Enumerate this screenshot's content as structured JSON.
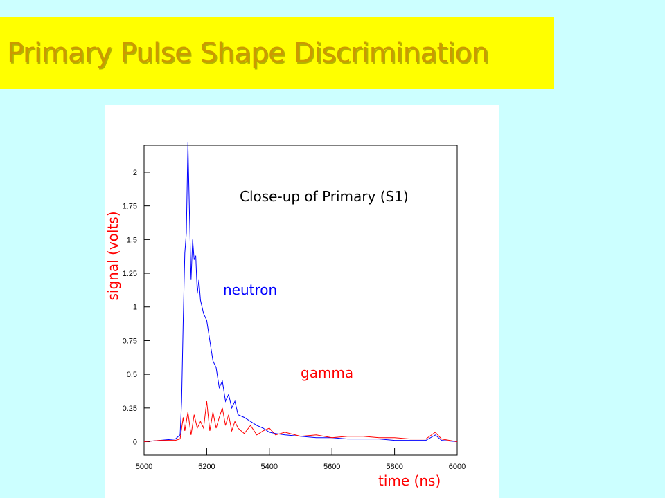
{
  "slide": {
    "title": "Primary Pulse Shape Discrimination",
    "background": "#ccffff",
    "banner_color": "#ffff00",
    "title_color": "#cc9900"
  },
  "chart_data": {
    "type": "line",
    "title": "Close-up of Primary (S1)",
    "xlabel": "time (ns)",
    "ylabel": "signal (volts)",
    "xlim": [
      5000,
      6000
    ],
    "ylim": [
      -0.1,
      2.2
    ],
    "x_ticks": [
      "5000",
      "5200",
      "5400",
      "5600",
      "5800",
      "6000"
    ],
    "y_ticks": [
      "0",
      "0.25",
      "0.5",
      "0.75",
      "1",
      "1.25",
      "1.5",
      "1.75",
      "2"
    ],
    "annotations": {
      "neutron": "neutron",
      "gamma": "gamma"
    },
    "series": [
      {
        "name": "neutron",
        "color": "#0000ff",
        "x": [
          5000,
          5050,
          5100,
          5115,
          5120,
          5125,
          5130,
          5135,
          5140,
          5145,
          5150,
          5155,
          5160,
          5165,
          5170,
          5175,
          5180,
          5190,
          5200,
          5210,
          5220,
          5230,
          5240,
          5250,
          5260,
          5270,
          5280,
          5290,
          5300,
          5320,
          5340,
          5360,
          5380,
          5400,
          5420,
          5450,
          5500,
          5550,
          5600,
          5650,
          5700,
          5750,
          5800,
          5850,
          5900,
          5930,
          5950,
          6000
        ],
        "y": [
          0.0,
          0.01,
          0.02,
          0.05,
          0.3,
          0.9,
          1.4,
          1.55,
          2.22,
          1.7,
          1.2,
          1.5,
          1.35,
          1.38,
          1.1,
          1.2,
          1.05,
          0.95,
          0.9,
          0.75,
          0.6,
          0.55,
          0.4,
          0.45,
          0.3,
          0.35,
          0.25,
          0.3,
          0.2,
          0.18,
          0.15,
          0.12,
          0.1,
          0.07,
          0.06,
          0.05,
          0.04,
          0.03,
          0.03,
          0.02,
          0.02,
          0.02,
          0.01,
          0.01,
          0.01,
          0.05,
          0.01,
          0.0
        ]
      },
      {
        "name": "gamma",
        "color": "#ff0000",
        "x": [
          5000,
          5050,
          5100,
          5115,
          5125,
          5130,
          5140,
          5150,
          5160,
          5170,
          5180,
          5190,
          5200,
          5210,
          5220,
          5230,
          5240,
          5250,
          5260,
          5270,
          5280,
          5290,
          5300,
          5320,
          5340,
          5360,
          5380,
          5400,
          5420,
          5450,
          5500,
          5550,
          5600,
          5650,
          5700,
          5750,
          5800,
          5850,
          5900,
          5930,
          5950,
          6000
        ],
        "y": [
          0.0,
          0.01,
          0.01,
          0.02,
          0.18,
          0.08,
          0.22,
          0.05,
          0.2,
          0.1,
          0.15,
          0.1,
          0.3,
          0.08,
          0.22,
          0.1,
          0.18,
          0.25,
          0.12,
          0.2,
          0.08,
          0.15,
          0.1,
          0.06,
          0.12,
          0.05,
          0.08,
          0.1,
          0.05,
          0.07,
          0.04,
          0.05,
          0.03,
          0.04,
          0.04,
          0.03,
          0.03,
          0.02,
          0.02,
          0.07,
          0.02,
          0.0
        ]
      }
    ]
  }
}
